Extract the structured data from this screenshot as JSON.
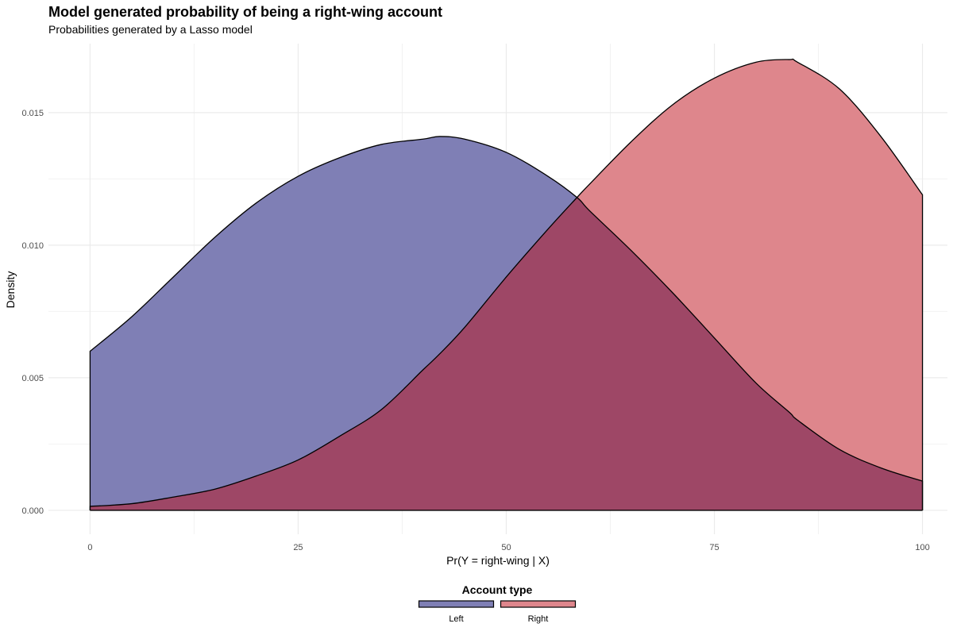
{
  "chart_data": {
    "type": "area",
    "title": "Model generated probability of being a right-wing account",
    "subtitle": "Probabilities generated by a Lasso model",
    "xlabel": "Pr(Y = right-wing | X)",
    "ylabel": "Density",
    "xlim": [
      -5,
      103
    ],
    "ylim": [
      -0.0009,
      0.0176
    ],
    "x_ticks": [
      0,
      25,
      50,
      75,
      100
    ],
    "x_tick_labels": [
      "0",
      "25",
      "50",
      "75",
      "100"
    ],
    "y_ticks": [
      0.0,
      0.005,
      0.01,
      0.015
    ],
    "y_tick_labels": [
      "0.000",
      "0.005",
      "0.010",
      "0.015"
    ],
    "x_minor_ticks": [
      12.5,
      37.5,
      62.5,
      87.5
    ],
    "y_minor_ticks": [
      0.0025,
      0.0075,
      0.0125
    ],
    "grid": true,
    "legend": {
      "title": "Account type",
      "position": "bottom"
    },
    "x": [
      0,
      5,
      10,
      15,
      20,
      25,
      30,
      35,
      40,
      42,
      45,
      50,
      55,
      58.5,
      60,
      65,
      70,
      75,
      80,
      84,
      85,
      90,
      95,
      100
    ],
    "series": [
      {
        "name": "Left",
        "color": "#7f7fb5",
        "values": [
          0.006,
          0.0073,
          0.0088,
          0.0103,
          0.0116,
          0.0126,
          0.0133,
          0.0138,
          0.014,
          0.0141,
          0.014,
          0.0135,
          0.0126,
          0.0118,
          0.0113,
          0.0098,
          0.0082,
          0.0065,
          0.0048,
          0.0037,
          0.0034,
          0.0023,
          0.0016,
          0.0011
        ]
      },
      {
        "name": "Right",
        "color": "#de868c",
        "values": [
          0.00015,
          0.00025,
          0.0005,
          0.0008,
          0.0013,
          0.0019,
          0.0028,
          0.0038,
          0.0053,
          0.0059,
          0.0069,
          0.0088,
          0.0106,
          0.0118,
          0.0123,
          0.0139,
          0.0153,
          0.0163,
          0.0169,
          0.017,
          0.0169,
          0.0159,
          0.0141,
          0.0119
        ]
      }
    ]
  }
}
